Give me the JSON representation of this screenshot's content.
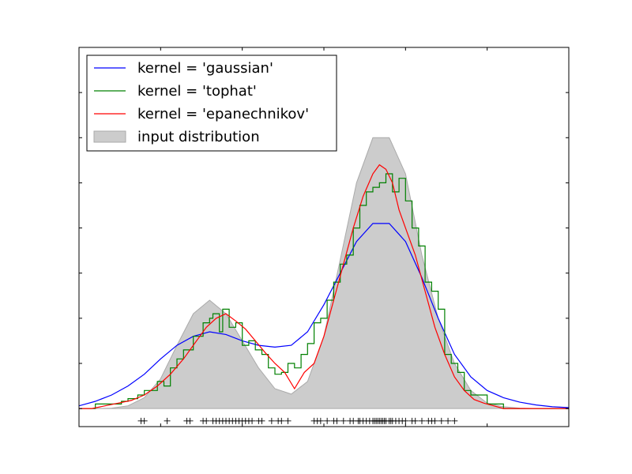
{
  "chart_data": {
    "type": "line",
    "title": "",
    "xlabel": "",
    "ylabel": "",
    "xlim": [
      -5,
      10
    ],
    "ylim": [
      -0.02,
      0.4
    ],
    "grid": false,
    "legend": {
      "placement": "top-left",
      "entries": [
        {
          "label": "kernel = 'gaussian'",
          "color": "#0000ff",
          "kind": "line"
        },
        {
          "label": "kernel = 'tophat'",
          "color": "#008000",
          "kind": "line"
        },
        {
          "label": "kernel = 'epanechnikov'",
          "color": "#ff0000",
          "kind": "line"
        },
        {
          "label": "input distribution",
          "color": "#cccccc",
          "edge": "#aaaaaa",
          "kind": "patch"
        }
      ]
    },
    "input_distribution": {
      "x": [
        -5,
        -4.5,
        -4,
        -3.5,
        -3,
        -2.5,
        -2,
        -1.5,
        -1,
        -0.5,
        0,
        0.5,
        1,
        1.5,
        2,
        2.5,
        3,
        3.5,
        4,
        4.5,
        5,
        5.5,
        6,
        6.5,
        7,
        7.5,
        8,
        8.5,
        9,
        9.5,
        10
      ],
      "y": [
        0,
        0,
        0.0005,
        0.003,
        0.012,
        0.033,
        0.07,
        0.105,
        0.12,
        0.105,
        0.075,
        0.045,
        0.022,
        0.016,
        0.03,
        0.08,
        0.165,
        0.25,
        0.3,
        0.3,
        0.26,
        0.17,
        0.1,
        0.05,
        0.02,
        0.006,
        0.002,
        0.0005,
        0,
        0,
        0
      ]
    },
    "series": [
      {
        "name": "kernel = 'gaussian'",
        "color": "#0000ff",
        "x": [
          -5,
          -4.5,
          -4,
          -3.5,
          -3,
          -2.5,
          -2,
          -1.5,
          -1,
          -0.5,
          0,
          0.5,
          1,
          1.5,
          2,
          2.5,
          3,
          3.5,
          4,
          4.5,
          5,
          5.5,
          6,
          6.5,
          7,
          7.5,
          8,
          8.5,
          9,
          9.5,
          10
        ],
        "y": [
          0.003,
          0.008,
          0.015,
          0.025,
          0.038,
          0.055,
          0.07,
          0.08,
          0.085,
          0.082,
          0.075,
          0.07,
          0.068,
          0.07,
          0.085,
          0.115,
          0.15,
          0.185,
          0.205,
          0.205,
          0.185,
          0.145,
          0.1,
          0.06,
          0.035,
          0.02,
          0.012,
          0.007,
          0.004,
          0.002,
          0.001
        ]
      },
      {
        "name": "kernel = 'tophat'",
        "color": "#008000",
        "x": [
          -5,
          -4.6,
          -4.5,
          -4,
          -3.7,
          -3.5,
          -3.2,
          -3,
          -2.8,
          -2.6,
          -2.4,
          -2.2,
          -2,
          -1.8,
          -1.5,
          -1.2,
          -1,
          -0.9,
          -0.7,
          -0.6,
          -0.4,
          -0.2,
          0,
          0.2,
          0.4,
          0.6,
          0.8,
          1,
          1.2,
          1.4,
          1.6,
          1.8,
          2,
          2.2,
          2.4,
          2.6,
          2.8,
          3,
          3.2,
          3.4,
          3.6,
          3.8,
          4,
          4.2,
          4.4,
          4.6,
          4.8,
          5,
          5.2,
          5.4,
          5.6,
          5.8,
          6,
          6.2,
          6.4,
          6.6,
          6.8,
          7,
          7.5,
          8,
          8.5,
          9,
          9.5,
          10
        ],
        "y": [
          0,
          0,
          0.005,
          0.005,
          0.008,
          0.011,
          0.015,
          0.02,
          0.02,
          0.03,
          0.025,
          0.045,
          0.055,
          0.065,
          0.08,
          0.095,
          0.1,
          0.105,
          0.085,
          0.11,
          0.09,
          0.095,
          0.07,
          0.075,
          0.065,
          0.06,
          0.045,
          0.038,
          0.04,
          0.05,
          0.045,
          0.06,
          0.072,
          0.095,
          0.1,
          0.12,
          0.14,
          0.16,
          0.17,
          0.2,
          0.225,
          0.24,
          0.245,
          0.25,
          0.26,
          0.24,
          0.255,
          0.23,
          0.2,
          0.18,
          0.14,
          0.13,
          0.11,
          0.06,
          0.05,
          0.04,
          0.02,
          0.015,
          0.005,
          0,
          0,
          0,
          0,
          0
        ]
      },
      {
        "name": "kernel = 'epanechnikov'",
        "color": "#ff0000",
        "x": [
          -5,
          -4.6,
          -4.2,
          -3.8,
          -3.4,
          -3,
          -2.6,
          -2.2,
          -1.8,
          -1.4,
          -1.1,
          -0.8,
          -0.5,
          -0.2,
          0.1,
          0.4,
          0.7,
          1,
          1.3,
          1.6,
          1.9,
          2.2,
          2.5,
          2.8,
          3.1,
          3.4,
          3.7,
          4,
          4.2,
          4.4,
          4.6,
          4.8,
          5,
          5.3,
          5.6,
          5.9,
          6.2,
          6.5,
          6.8,
          7.1,
          7.4,
          7.7,
          8,
          8.5,
          9,
          9.5,
          10
        ],
        "y": [
          0,
          0,
          0.003,
          0.006,
          0.009,
          0.015,
          0.025,
          0.038,
          0.055,
          0.075,
          0.09,
          0.1,
          0.105,
          0.097,
          0.088,
          0.075,
          0.062,
          0.05,
          0.04,
          0.022,
          0.04,
          0.05,
          0.08,
          0.12,
          0.16,
          0.2,
          0.235,
          0.26,
          0.27,
          0.265,
          0.25,
          0.22,
          0.2,
          0.17,
          0.13,
          0.09,
          0.06,
          0.035,
          0.02,
          0.01,
          0.006,
          0.003,
          0,
          0,
          0,
          0,
          0
        ]
      }
    ],
    "samples": {
      "marker": "+",
      "color": "#000000",
      "y": -0.005,
      "x": [
        -3.1,
        -2.3,
        -1.7,
        -1.6,
        -1.2,
        -1.1,
        -0.9,
        -0.7,
        -0.6,
        -0.5,
        -0.4,
        -0.3,
        -0.2,
        -0.1,
        0,
        0.1,
        0.3,
        0.5,
        0.6,
        0.9,
        1.1,
        1.2,
        1.4,
        2.2,
        2.3,
        2.4,
        2.6,
        2.8,
        2.9,
        3.1,
        3.3,
        3.4,
        3.6,
        3.7,
        3.8,
        3.9,
        4,
        4.1,
        4.15,
        4.2,
        4.3,
        4.35,
        4.4,
        4.5,
        4.6,
        4.7,
        4.8,
        4.9,
        5.0,
        5.2,
        5.3,
        5.5,
        5.7,
        5.8,
        5.9,
        6.1,
        6.3,
        6.5,
        0.2,
        4.05,
        4.25,
        4.55,
        3.55,
        -0.8,
        -3.0
      ]
    }
  }
}
